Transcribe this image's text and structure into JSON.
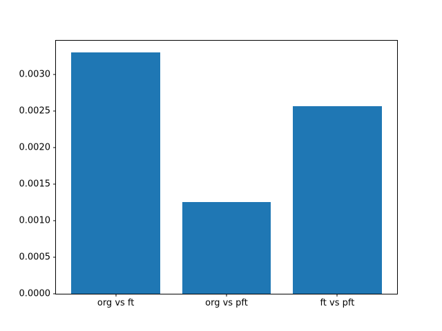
{
  "figure": {
    "background": "#ffffff",
    "frame_color": "#000000"
  },
  "chart_data": {
    "type": "bar",
    "title": "",
    "xlabel": "",
    "ylabel": "",
    "categories": [
      "org vs ft",
      "org vs pft",
      "ft vs pft"
    ],
    "values": [
      0.0033,
      0.00126,
      0.00257
    ],
    "bar_color": "#1f77b4",
    "bar_width": 0.8,
    "xlim": [
      -0.54,
      2.54
    ],
    "ylim": [
      0,
      0.003465
    ],
    "yticks": [
      {
        "value": 0.0,
        "label": "0.0000"
      },
      {
        "value": 0.0005,
        "label": "0.0005"
      },
      {
        "value": 0.001,
        "label": "0.0010"
      },
      {
        "value": 0.0015,
        "label": "0.0015"
      },
      {
        "value": 0.002,
        "label": "0.0020"
      },
      {
        "value": 0.0025,
        "label": "0.0025"
      },
      {
        "value": 0.003,
        "label": "0.0030"
      }
    ],
    "grid": false,
    "legend_position": "none"
  }
}
